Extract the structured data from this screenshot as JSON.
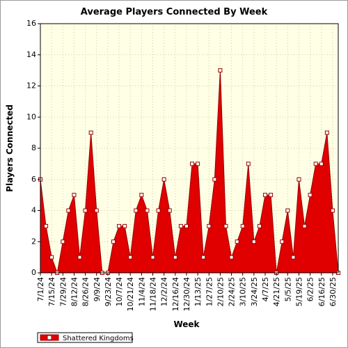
{
  "chart_data": {
    "type": "area",
    "title": "Average Players Connected By Week",
    "xlabel": "Week",
    "ylabel": "Players Connected",
    "ylim": [
      0,
      16
    ],
    "yticks": [
      0,
      2,
      4,
      6,
      8,
      10,
      12,
      14,
      16
    ],
    "grid": true,
    "legend_position": "bottom-left",
    "colors": {
      "fill": "#e00000",
      "line": "#990000",
      "marker_fill": "#ffffff",
      "background": "#ffffe6",
      "grid": "#cccc99"
    },
    "x": [
      "7/1/24",
      "7/8/24",
      "7/15/24",
      "7/22/24",
      "7/29/24",
      "8/5/24",
      "8/12/24",
      "8/19/24",
      "8/26/24",
      "9/2/24",
      "9/9/24",
      "9/16/24",
      "9/23/24",
      "9/30/24",
      "10/7/24",
      "10/14/24",
      "10/21/24",
      "10/28/24",
      "11/4/24",
      "11/11/24",
      "11/18/24",
      "11/25/24",
      "12/2/24",
      "12/9/24",
      "12/16/24",
      "12/23/24",
      "12/30/24",
      "1/6/25",
      "1/13/25",
      "1/20/25",
      "1/27/25",
      "2/3/25",
      "2/10/25",
      "2/17/25",
      "2/24/25",
      "3/3/25",
      "3/10/25",
      "3/17/25",
      "3/24/25",
      "3/31/25",
      "4/7/25",
      "4/14/25",
      "4/21/25",
      "4/28/25",
      "5/5/25",
      "5/12/25",
      "5/19/25",
      "5/26/25",
      "6/2/25",
      "6/9/25",
      "6/16/25",
      "6/23/25",
      "6/30/25",
      "7/7/25"
    ],
    "tick_labels": [
      "7/1/24",
      "7/15/24",
      "7/29/24",
      "8/12/24",
      "8/26/24",
      "9/9/24",
      "9/23/24",
      "10/7/24",
      "10/21/24",
      "11/4/24",
      "11/18/24",
      "12/2/24",
      "12/16/24",
      "12/30/24",
      "1/13/25",
      "1/27/25",
      "2/10/25",
      "2/24/25",
      "3/10/25",
      "3/24/25",
      "4/7/25",
      "4/21/25",
      "5/5/25",
      "5/19/25",
      "6/2/25",
      "6/16/25",
      "6/30/25"
    ],
    "series": [
      {
        "name": "Shattered Kingdoms",
        "values": [
          6,
          3,
          1,
          0,
          2,
          4,
          5,
          1,
          4,
          9,
          4,
          0,
          0,
          2,
          3,
          3,
          1,
          4,
          5,
          4,
          1,
          4,
          6,
          4,
          1,
          3,
          3,
          7,
          7,
          1,
          3,
          6,
          13,
          3,
          1,
          2,
          3,
          7,
          2,
          3,
          5,
          5,
          0,
          2,
          4,
          1,
          6,
          3,
          5,
          7,
          7,
          9,
          4,
          0
        ]
      }
    ]
  }
}
